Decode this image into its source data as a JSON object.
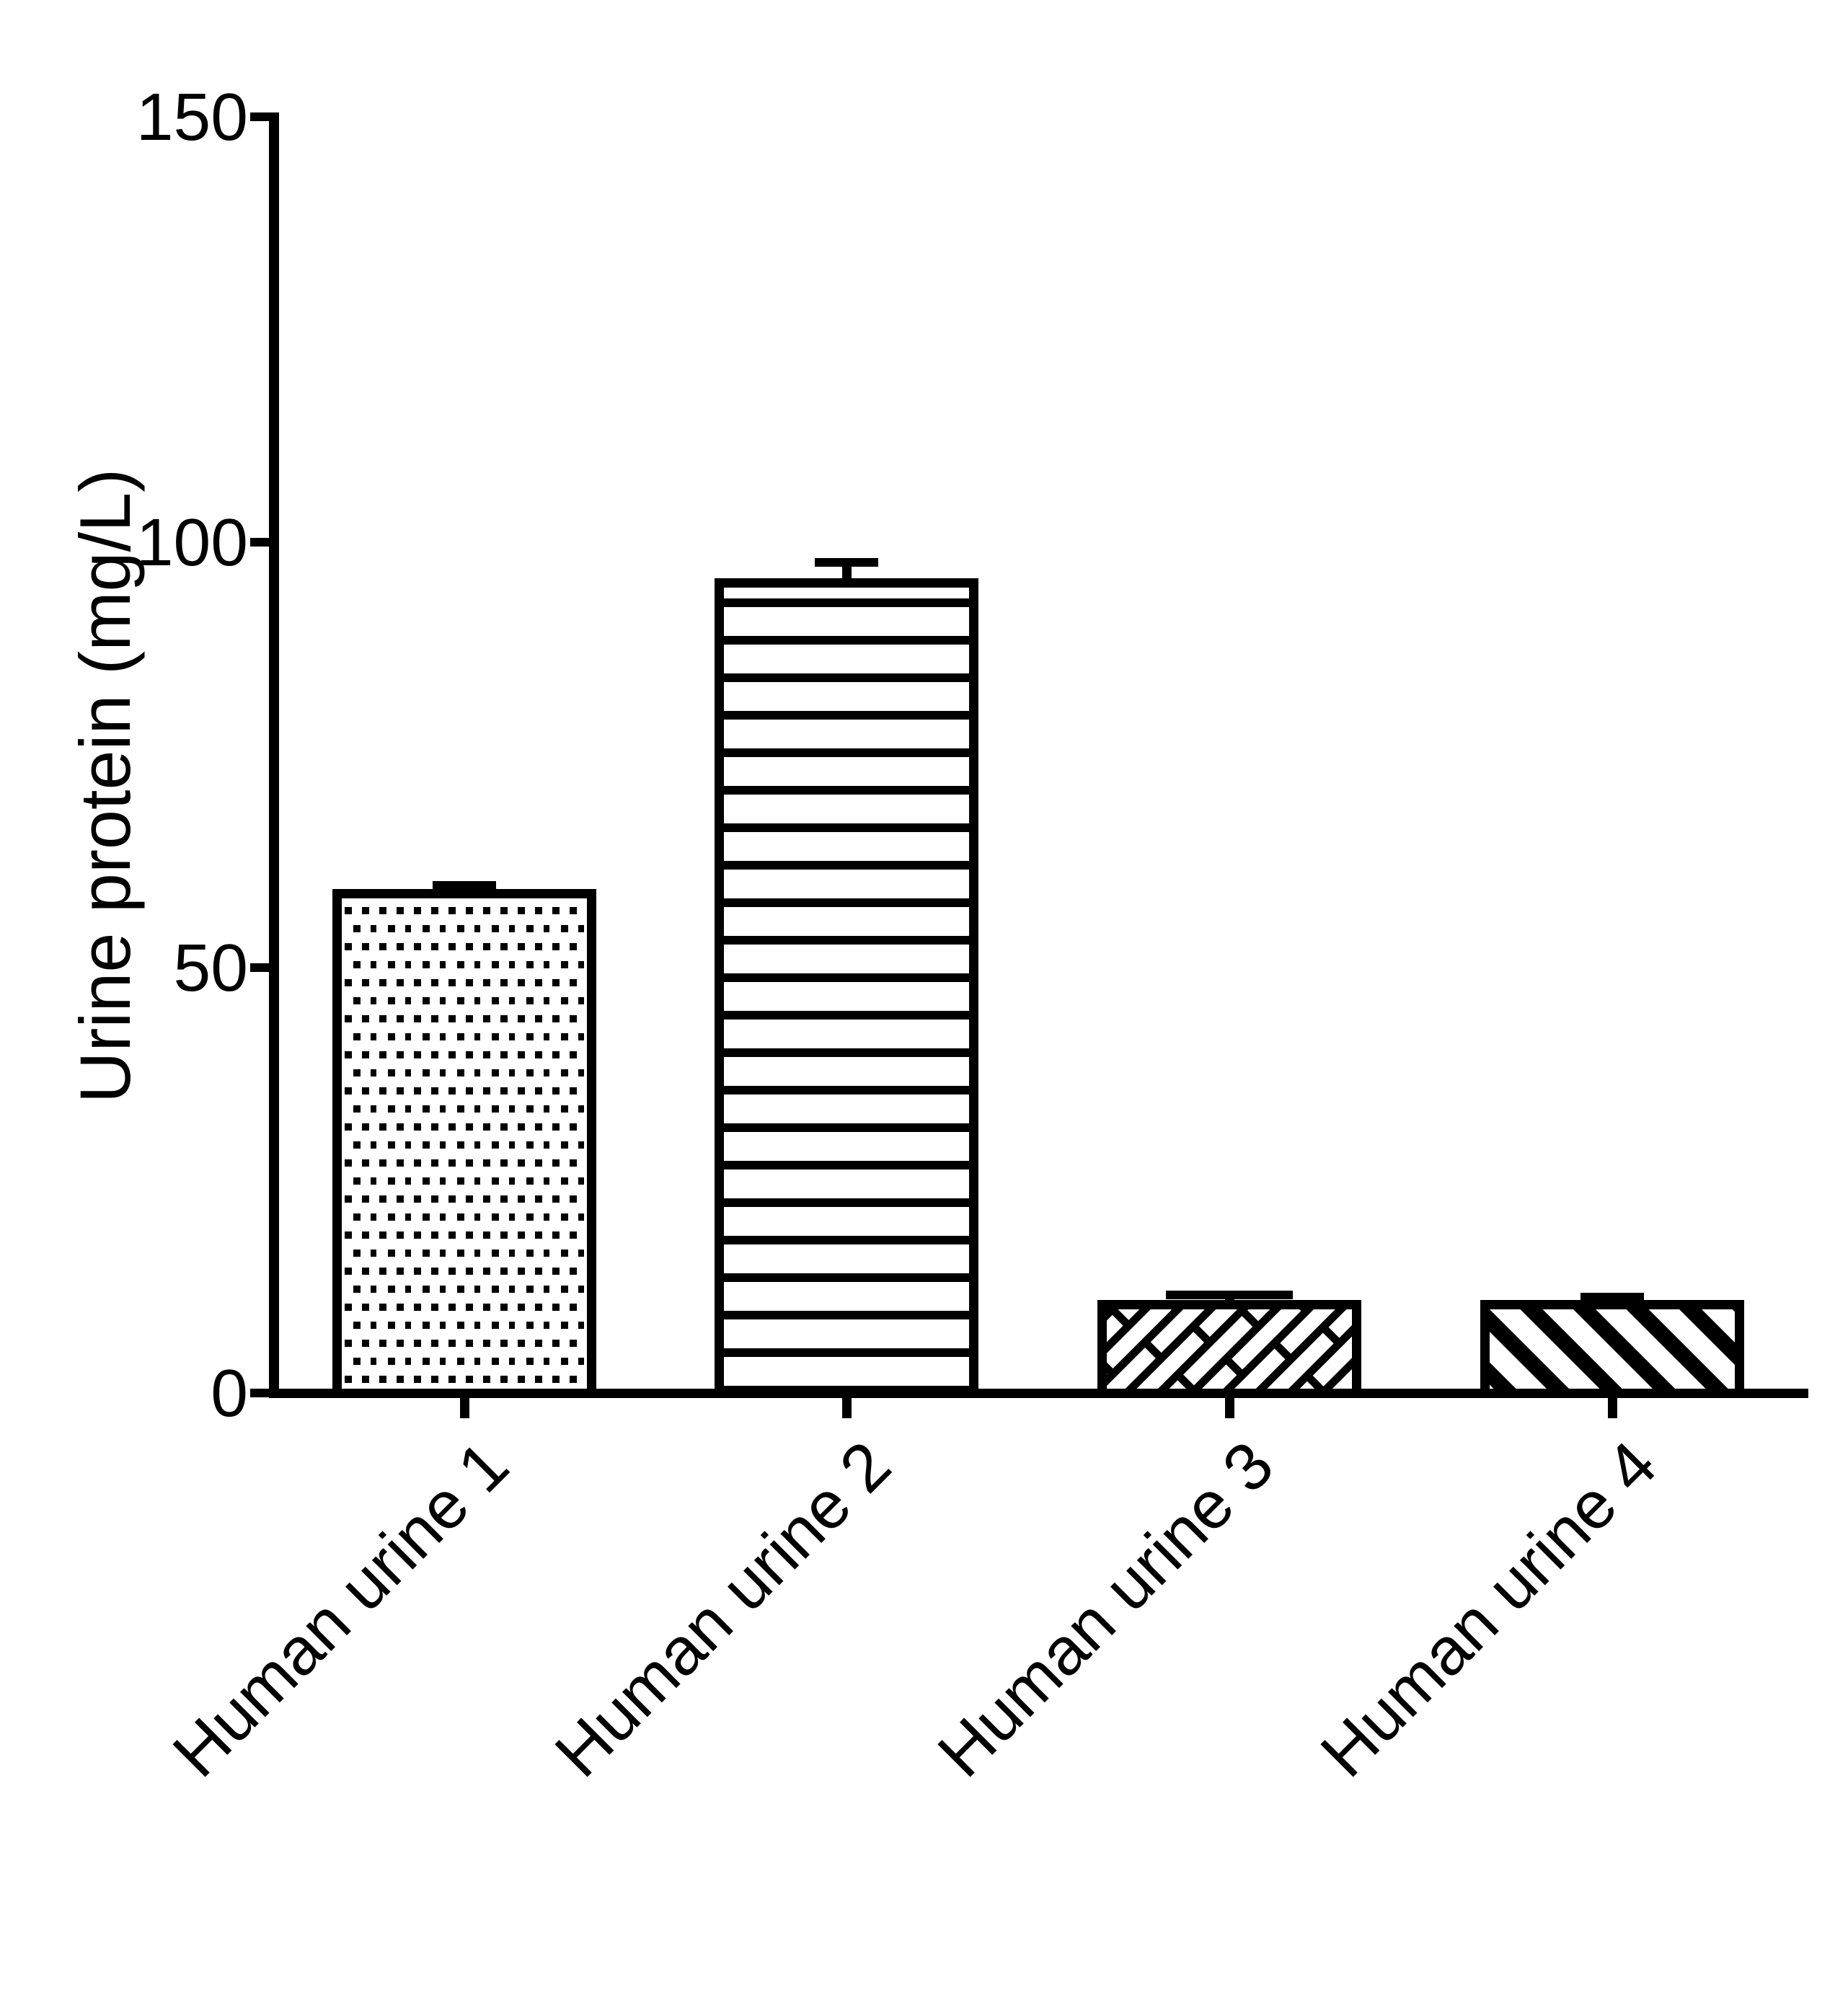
{
  "chart_data": {
    "type": "bar",
    "title": "",
    "ylabel": "Urine protein (mg/L)",
    "xlabel": "",
    "categories": [
      "Human urine 1",
      "Human urine 2",
      "Human urine 3",
      "Human urine 4"
    ],
    "values": [
      59.2,
      95.8,
      10.9,
      10.9
    ],
    "errors_upper": [
      0.5,
      1.8,
      0.6,
      0.4
    ],
    "yticks": [
      0,
      50,
      100,
      150
    ],
    "ytick_labels": [
      "0",
      "50",
      "100",
      "150"
    ],
    "ylim": [
      0,
      150
    ],
    "grid": false,
    "legend": false,
    "bar_fill_color": "#ffffff",
    "bar_border_color": "#000000",
    "axis_color": "#000000",
    "bar_patterns": [
      "dots",
      "horizontal-lines",
      "diagonal-bricks",
      "diagonal-stripes"
    ],
    "x_label_rotation_deg": -45
  }
}
